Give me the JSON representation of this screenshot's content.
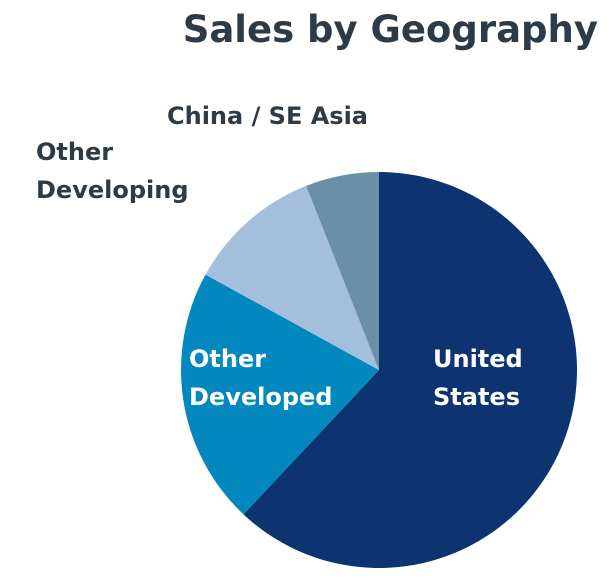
{
  "chart_data": {
    "type": "pie",
    "title": "Sales by Geography",
    "categories": [
      "United States",
      "Other Developed",
      "Other Developing",
      "China / SE Asia"
    ],
    "values": [
      62,
      21,
      11,
      6
    ],
    "colors": [
      "#0d3370",
      "#0288bf",
      "#a3bfdc",
      "#6b8fa6"
    ]
  }
}
